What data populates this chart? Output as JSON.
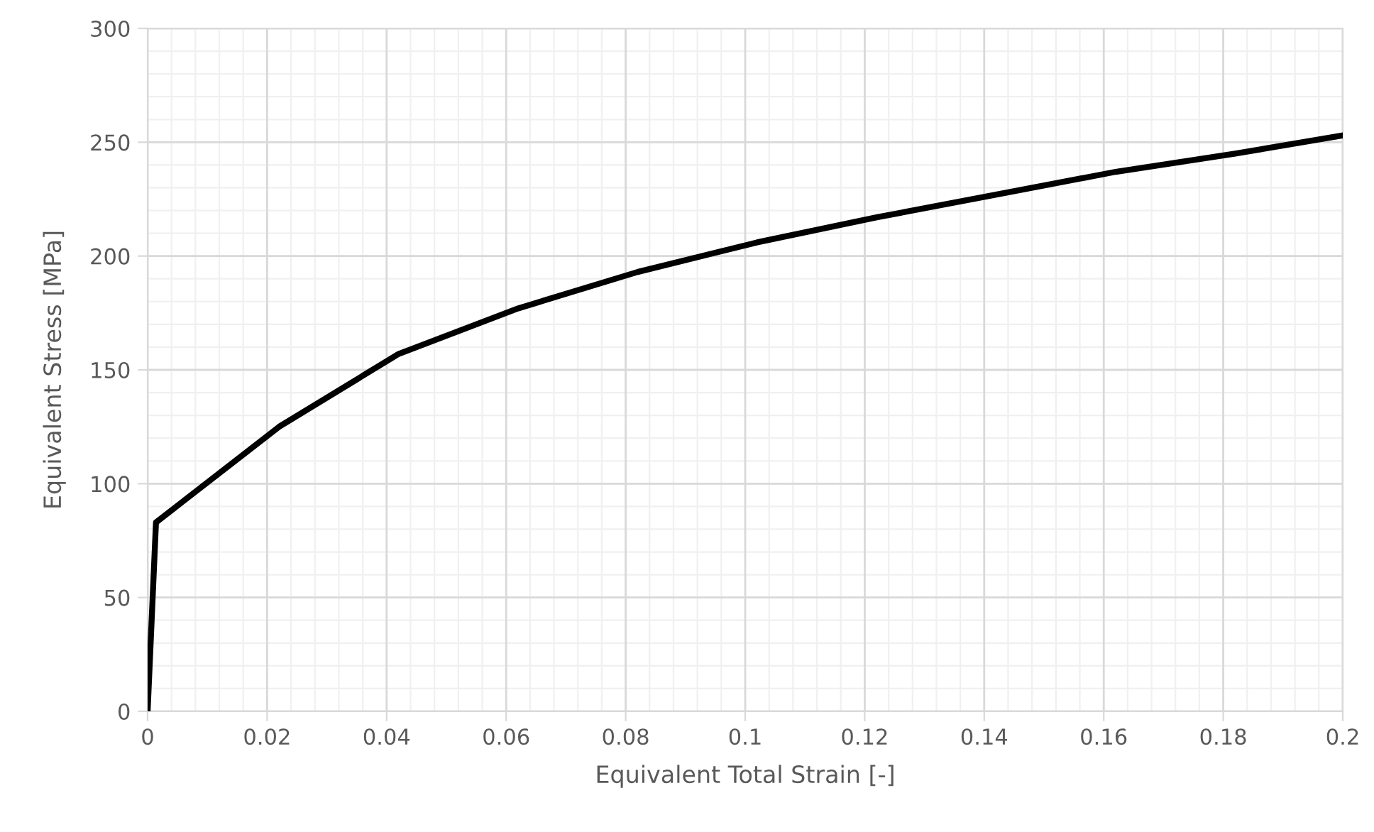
{
  "chart_data": {
    "type": "line",
    "xlabel": "Equivalent Total Strain [-]",
    "ylabel": "Equivalent Stress [MPa]",
    "x": [
      0,
      0.0014,
      0.022,
      0.042,
      0.062,
      0.082,
      0.102,
      0.122,
      0.142,
      0.162,
      0.182,
      0.2
    ],
    "series": [
      {
        "color": "#000000",
        "values": [
          0,
          83,
          125,
          157,
          177,
          193,
          206,
          217,
          227,
          237,
          245,
          253
        ]
      }
    ],
    "xlim": [
      0,
      0.2
    ],
    "ylim": [
      0,
      300
    ],
    "xticks": [
      0,
      0.02,
      0.04,
      0.06,
      0.08,
      0.1,
      0.12,
      0.14,
      0.16,
      0.18,
      0.2
    ],
    "yticks": [
      0,
      50,
      100,
      150,
      200,
      250,
      300
    ],
    "grid": true,
    "marker": "none",
    "line_style": "solid"
  }
}
